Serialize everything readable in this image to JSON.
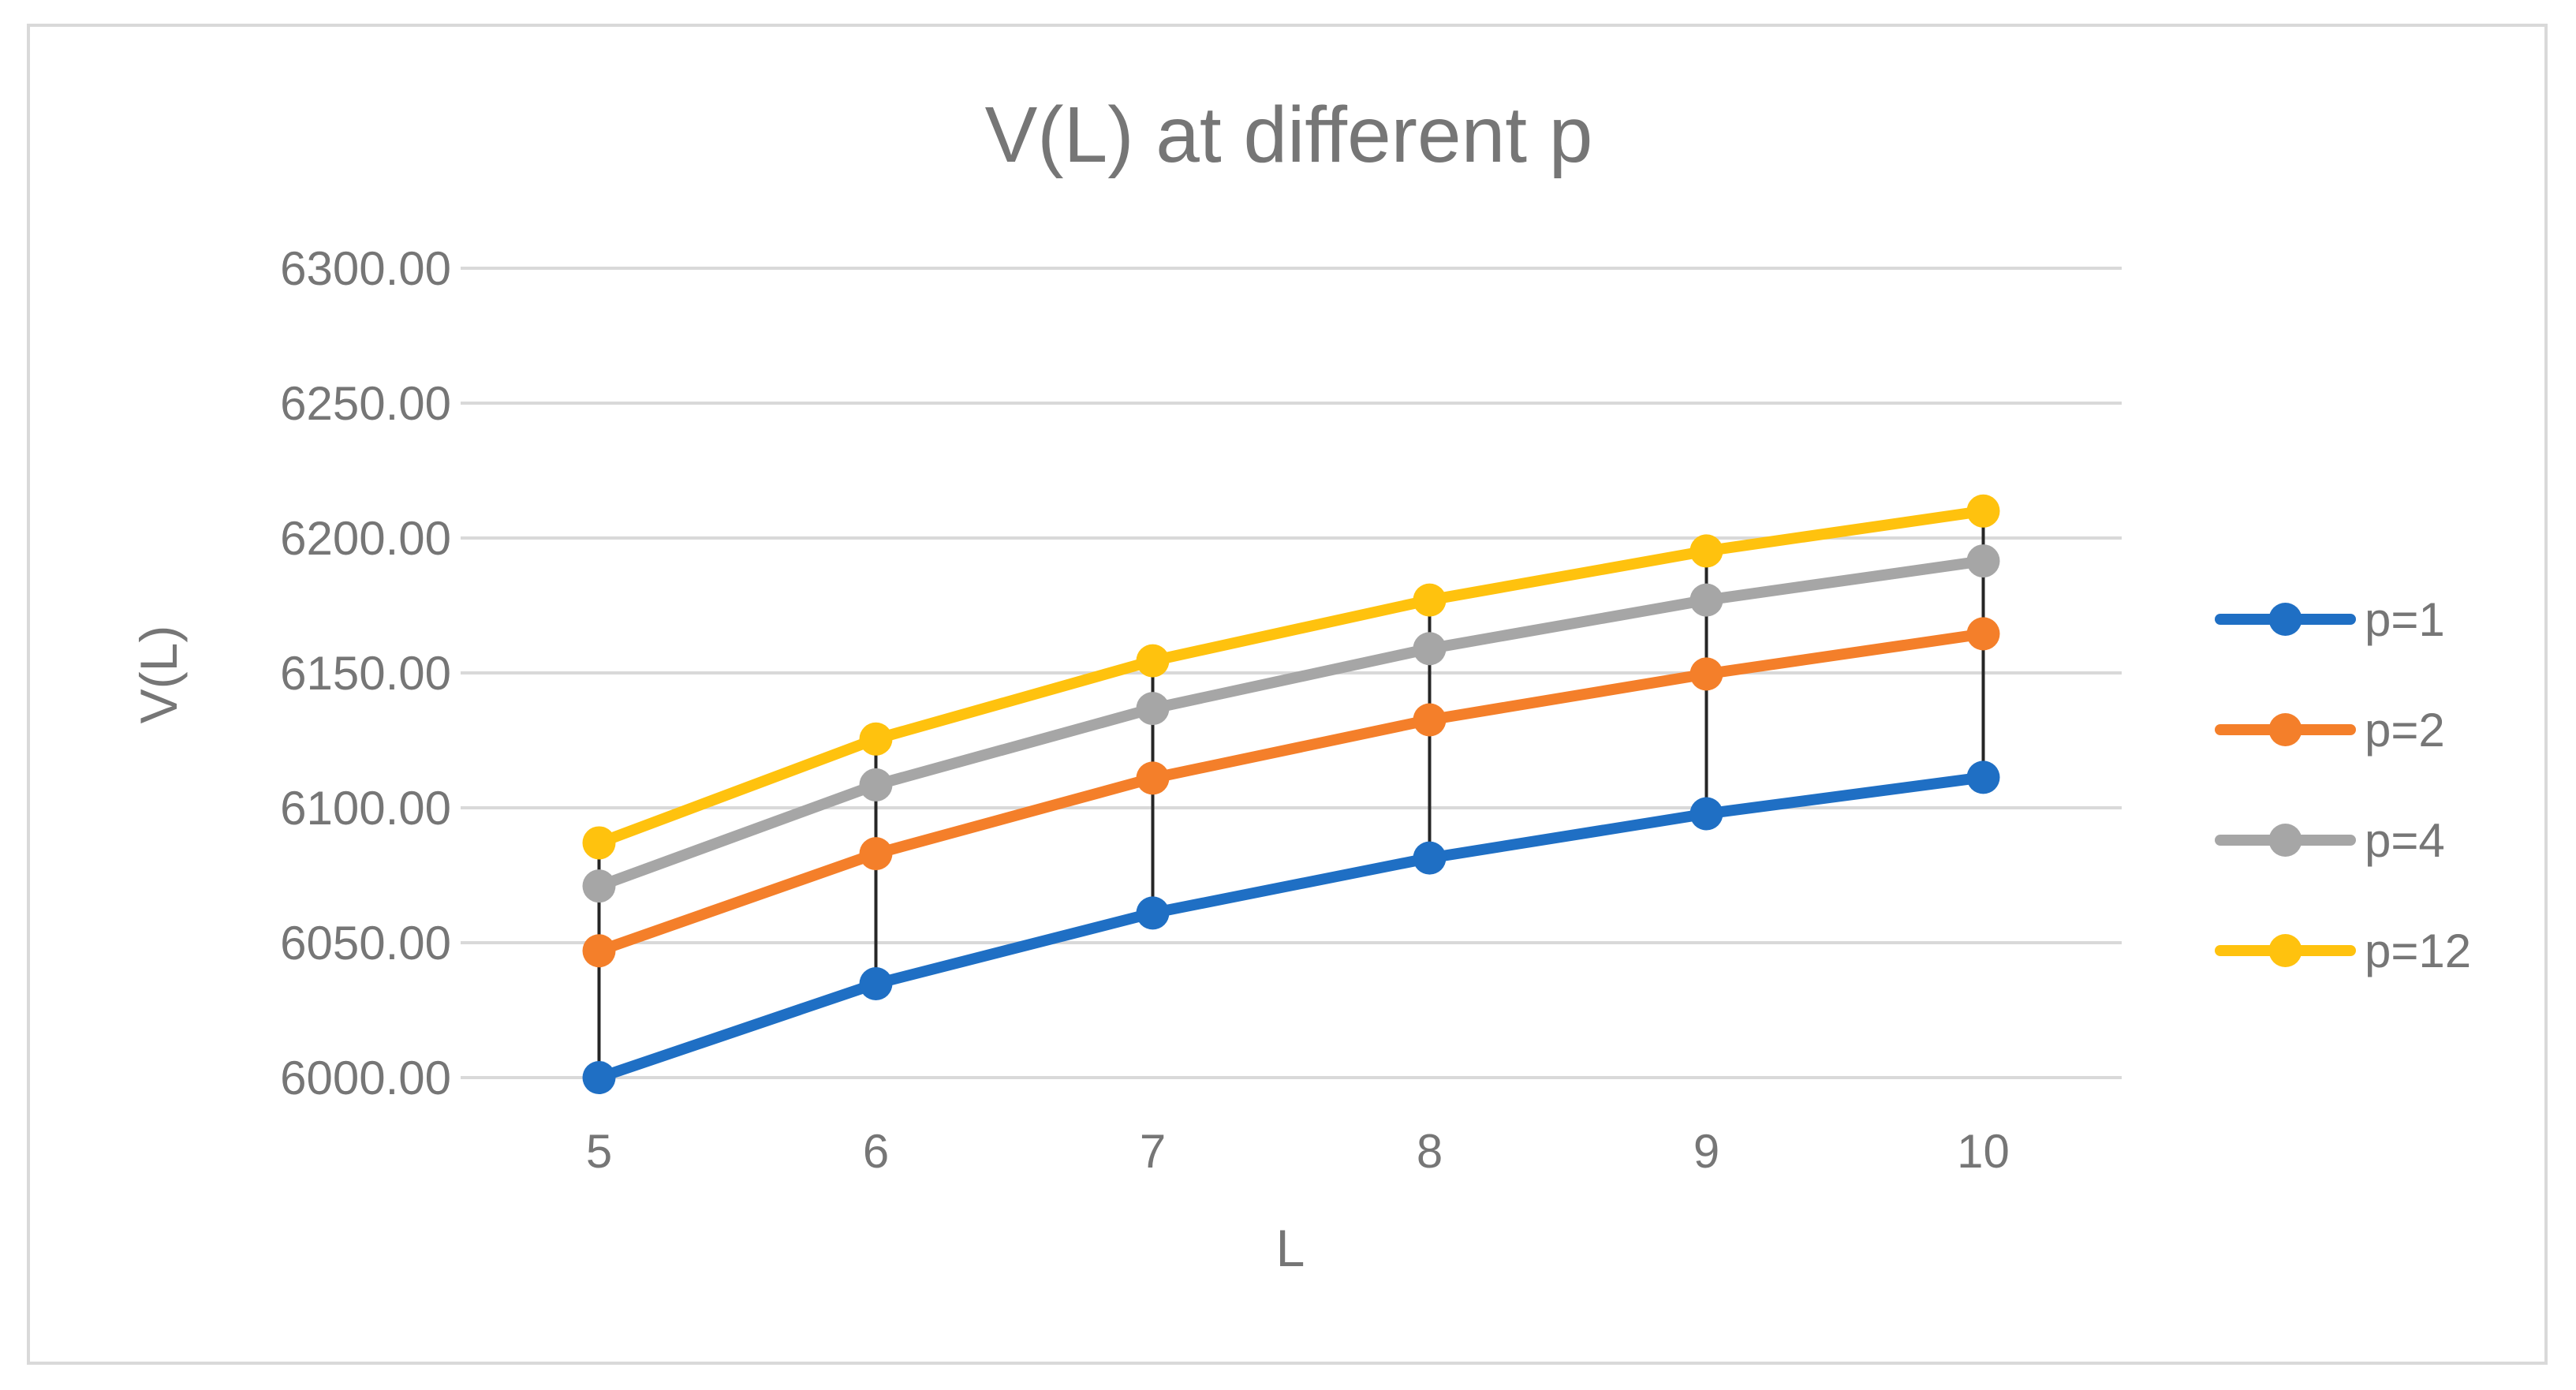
{
  "chart_data": {
    "type": "line",
    "title": "V(L) at different p",
    "xlabel": "L",
    "ylabel": "V(L)",
    "categories": [
      "5",
      "6",
      "7",
      "8",
      "9",
      "10"
    ],
    "ylim": [
      6000,
      6300
    ],
    "yticks": [
      6000,
      6050,
      6100,
      6150,
      6200,
      6250,
      6300
    ],
    "ytick_labels": [
      "6000.00",
      "6050.00",
      "6100.00",
      "6150.00",
      "6200.00",
      "6250.00",
      "6300.00"
    ],
    "grid": true,
    "drop_lines": true,
    "legend_position": "right",
    "series": [
      {
        "name": "p=1",
        "color": "#1f6fc4",
        "values": [
          6000.0,
          6034.8,
          6061.0,
          6081.4,
          6097.8,
          6111.3
        ]
      },
      {
        "name": "p=2",
        "color": "#f47f2a",
        "values": [
          6047.0,
          6083.0,
          6111.0,
          6132.6,
          6149.6,
          6164.5
        ]
      },
      {
        "name": "p=4",
        "color": "#a6a6a6",
        "values": [
          6071.0,
          6108.5,
          6136.8,
          6159.0,
          6177.0,
          6191.5
        ]
      },
      {
        "name": "p=12",
        "color": "#ffc20e",
        "values": [
          6087.0,
          6125.5,
          6154.5,
          6177.0,
          6195.2,
          6210.0
        ]
      }
    ]
  }
}
